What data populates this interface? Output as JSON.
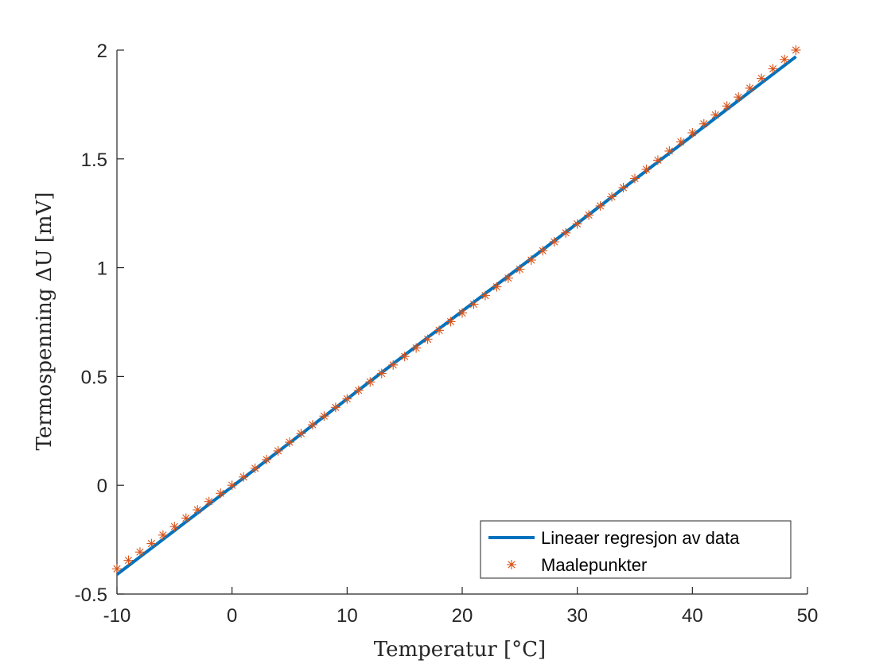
{
  "chart_data": {
    "type": "scatter",
    "xlabel": "Temperatur [°C]",
    "ylabel": "Termospenning ΔU [mV]",
    "xlim": [
      -10,
      50
    ],
    "ylim": [
      -0.5,
      2
    ],
    "xticks": [
      "-10",
      "0",
      "10",
      "20",
      "30",
      "40",
      "50"
    ],
    "yticks": [
      "-0.5",
      "0",
      "0.5",
      "1",
      "1.5",
      "2"
    ],
    "grid": false,
    "legend_position": "bottom-right",
    "series": [
      {
        "name": "Lineaer regresjon av data",
        "kind": "line",
        "color": "#0072BD",
        "x": [
          -10,
          49
        ],
        "y": [
          -0.41,
          1.97
        ]
      },
      {
        "name": "Maalepunkter",
        "kind": "marker",
        "marker": "asterisk",
        "color": "#D95319",
        "x": [
          -10,
          -9,
          -8,
          -7,
          -6,
          -5,
          -4,
          -3,
          -2,
          -1,
          0,
          1,
          2,
          3,
          4,
          5,
          6,
          7,
          8,
          9,
          10,
          11,
          12,
          13,
          14,
          15,
          16,
          17,
          18,
          19,
          20,
          21,
          22,
          23,
          24,
          25,
          26,
          27,
          28,
          29,
          30,
          31,
          32,
          33,
          34,
          35,
          36,
          37,
          38,
          39,
          40,
          41,
          42,
          43,
          44,
          45,
          46,
          47,
          48,
          49
        ],
        "y": [
          -0.384,
          -0.345,
          -0.307,
          -0.268,
          -0.229,
          -0.19,
          -0.151,
          -0.113,
          -0.075,
          -0.037,
          0.0,
          0.038,
          0.078,
          0.118,
          0.158,
          0.198,
          0.238,
          0.278,
          0.318,
          0.358,
          0.397,
          0.436,
          0.475,
          0.514,
          0.553,
          0.592,
          0.631,
          0.671,
          0.712,
          0.752,
          0.792,
          0.832,
          0.872,
          0.912,
          0.952,
          0.993,
          1.035,
          1.078,
          1.119,
          1.16,
          1.201,
          1.242,
          1.284,
          1.326,
          1.368,
          1.41,
          1.452,
          1.494,
          1.536,
          1.578,
          1.62,
          1.661,
          1.702,
          1.743,
          1.784,
          1.825,
          1.87,
          1.914,
          1.957,
          2.0
        ]
      }
    ]
  }
}
